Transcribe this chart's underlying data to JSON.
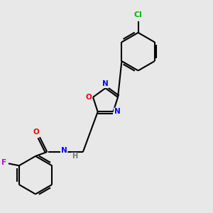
{
  "background_color": "#e8e8e8",
  "bond_color": "#000000",
  "atom_colors": {
    "N": "#0000ff",
    "O": "#ff0000",
    "F": "#cc00cc",
    "Cl": "#00bb00",
    "H": "#777777",
    "C": "#000000"
  },
  "figsize": [
    3.0,
    3.0
  ],
  "dpi": 100
}
